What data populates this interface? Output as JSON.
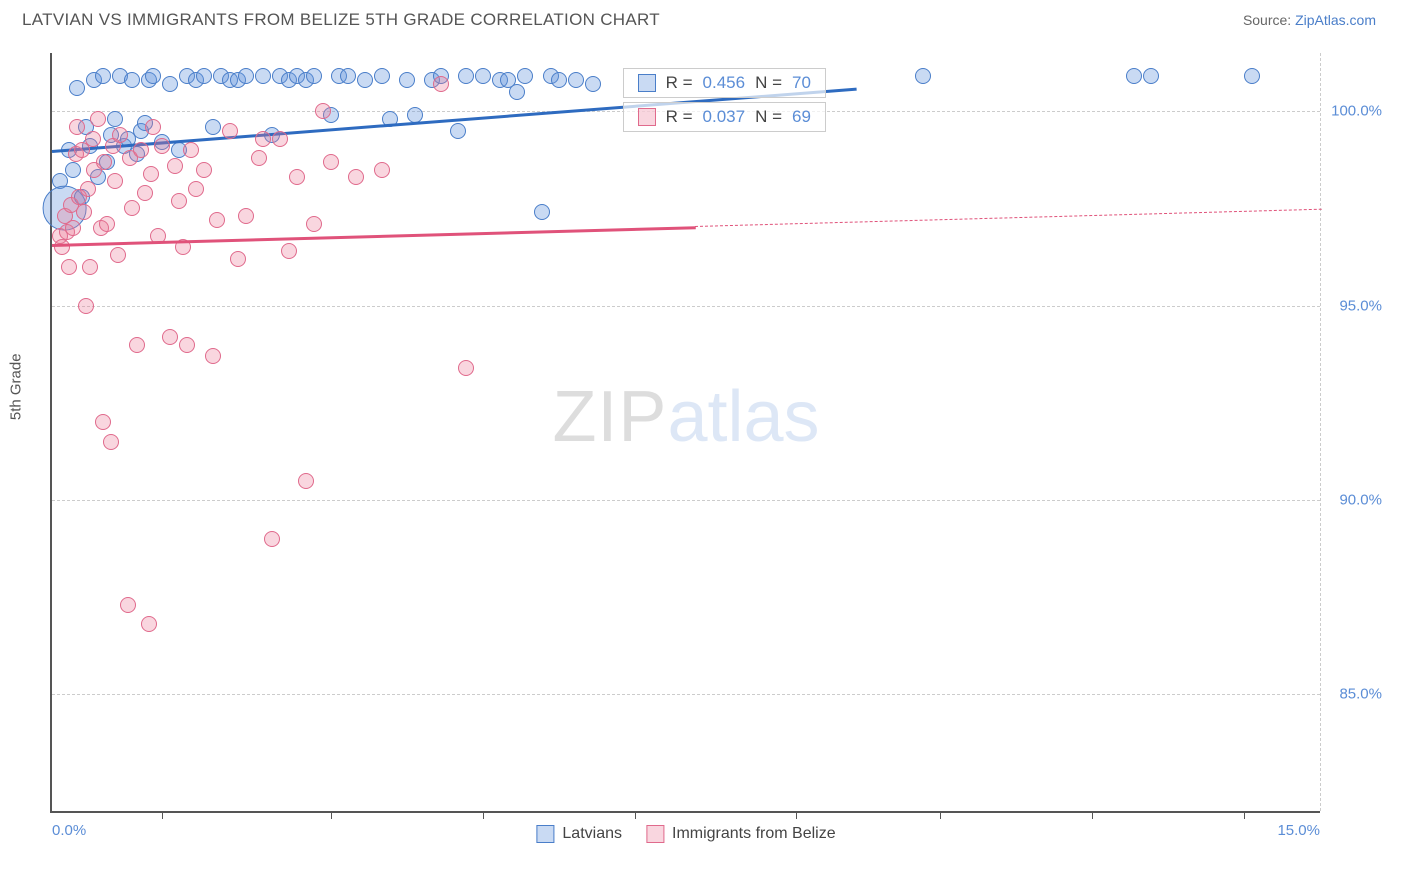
{
  "title": "LATVIAN VS IMMIGRANTS FROM BELIZE 5TH GRADE CORRELATION CHART",
  "source_label": "Source:",
  "source_name": "ZipAtlas.com",
  "y_axis_label": "5th Grade",
  "chart": {
    "type": "scatter",
    "xlim": [
      0,
      15
    ],
    "ylim": [
      82,
      101.5
    ],
    "x_ticks_major": [
      0,
      15
    ],
    "x_ticks_minor": [
      1.3,
      3.3,
      5.1,
      6.9,
      8.8,
      10.5,
      12.3,
      14.1
    ],
    "x_tick_labels": {
      "0": "0.0%",
      "15": "15.0%"
    },
    "y_ticks": [
      85,
      90,
      95,
      100
    ],
    "y_tick_labels": {
      "85": "85.0%",
      "90": "90.0%",
      "95": "95.0%",
      "100": "100.0%"
    },
    "grid_color": "#cccccc",
    "background_color": "#ffffff",
    "axis_color": "#555555",
    "tick_label_color": "#5b8dd6",
    "watermark": {
      "prefix": "ZIP",
      "suffix": "atlas"
    },
    "series": [
      {
        "name": "Latvians",
        "fill": "rgba(100,150,220,0.35)",
        "stroke": "#4a7ec9",
        "R": "0.456",
        "N": "70",
        "trend": {
          "x1": 0,
          "y1": 99.0,
          "x2": 9.5,
          "y2": 100.6,
          "color": "#2e6bc0",
          "dash_from_x": null
        },
        "points": [
          [
            0.1,
            98.2,
            10
          ],
          [
            0.15,
            97.5,
            28
          ],
          [
            0.2,
            99.0,
            10
          ],
          [
            0.25,
            98.5,
            10
          ],
          [
            0.3,
            100.6,
            10
          ],
          [
            0.35,
            97.8,
            10
          ],
          [
            0.4,
            99.6,
            10
          ],
          [
            0.45,
            99.1,
            10
          ],
          [
            0.5,
            100.8,
            10
          ],
          [
            0.55,
            98.3,
            10
          ],
          [
            0.6,
            100.9,
            10
          ],
          [
            0.65,
            98.7,
            10
          ],
          [
            0.7,
            99.4,
            10
          ],
          [
            0.75,
            99.8,
            10
          ],
          [
            0.8,
            100.9,
            10
          ],
          [
            0.85,
            99.1,
            10
          ],
          [
            0.9,
            99.3,
            10
          ],
          [
            0.95,
            100.8,
            10
          ],
          [
            1.0,
            98.9,
            10
          ],
          [
            1.05,
            99.5,
            10
          ],
          [
            1.1,
            99.7,
            10
          ],
          [
            1.15,
            100.8,
            10
          ],
          [
            1.2,
            100.9,
            10
          ],
          [
            1.3,
            99.2,
            10
          ],
          [
            1.4,
            100.7,
            10
          ],
          [
            1.5,
            99.0,
            10
          ],
          [
            1.6,
            100.9,
            10
          ],
          [
            1.7,
            100.8,
            10
          ],
          [
            1.8,
            100.9,
            10
          ],
          [
            1.9,
            99.6,
            10
          ],
          [
            2.0,
            100.9,
            10
          ],
          [
            2.1,
            100.8,
            10
          ],
          [
            2.2,
            100.8,
            10
          ],
          [
            2.3,
            100.9,
            10
          ],
          [
            2.5,
            100.9,
            10
          ],
          [
            2.6,
            99.4,
            10
          ],
          [
            2.7,
            100.9,
            10
          ],
          [
            2.8,
            100.8,
            10
          ],
          [
            2.9,
            100.9,
            10
          ],
          [
            3.0,
            100.8,
            10
          ],
          [
            3.1,
            100.9,
            10
          ],
          [
            3.3,
            99.9,
            10
          ],
          [
            3.4,
            100.9,
            10
          ],
          [
            3.5,
            100.9,
            10
          ],
          [
            3.7,
            100.8,
            10
          ],
          [
            3.9,
            100.9,
            10
          ],
          [
            4.0,
            99.8,
            10
          ],
          [
            4.2,
            100.8,
            10
          ],
          [
            4.3,
            99.9,
            10
          ],
          [
            4.5,
            100.8,
            10
          ],
          [
            4.6,
            100.9,
            10
          ],
          [
            4.8,
            99.5,
            10
          ],
          [
            4.9,
            100.9,
            10
          ],
          [
            5.1,
            100.9,
            10
          ],
          [
            5.3,
            100.8,
            10
          ],
          [
            5.4,
            100.8,
            10
          ],
          [
            5.5,
            100.5,
            10
          ],
          [
            5.6,
            100.9,
            10
          ],
          [
            5.8,
            97.4,
            10
          ],
          [
            5.9,
            100.9,
            10
          ],
          [
            6.0,
            100.8,
            10
          ],
          [
            6.2,
            100.8,
            10
          ],
          [
            6.4,
            100.7,
            10
          ],
          [
            10.3,
            100.9,
            10
          ],
          [
            12.8,
            100.9,
            10
          ],
          [
            13.0,
            100.9,
            10
          ],
          [
            14.2,
            100.9,
            10
          ]
        ]
      },
      {
        "name": "Immigants_from_Belize",
        "label": "Immigrants from Belize",
        "fill": "rgba(235,120,150,0.30)",
        "stroke": "#e06a8c",
        "R": "0.037",
        "N": "69",
        "trend": {
          "x1": 0,
          "y1": 96.6,
          "x2": 15,
          "y2": 97.5,
          "color": "#e0527a",
          "dash_from_x": 7.6
        },
        "points": [
          [
            0.1,
            96.8,
            10
          ],
          [
            0.12,
            96.5,
            10
          ],
          [
            0.15,
            97.3,
            10
          ],
          [
            0.18,
            96.9,
            10
          ],
          [
            0.2,
            96.0,
            10
          ],
          [
            0.22,
            97.6,
            10
          ],
          [
            0.25,
            97.0,
            10
          ],
          [
            0.28,
            98.9,
            10
          ],
          [
            0.3,
            99.6,
            10
          ],
          [
            0.32,
            97.8,
            10
          ],
          [
            0.35,
            99.0,
            10
          ],
          [
            0.38,
            97.4,
            10
          ],
          [
            0.4,
            95.0,
            10
          ],
          [
            0.42,
            98.0,
            10
          ],
          [
            0.45,
            96.0,
            10
          ],
          [
            0.48,
            99.3,
            10
          ],
          [
            0.5,
            98.5,
            10
          ],
          [
            0.55,
            99.8,
            10
          ],
          [
            0.58,
            97.0,
            10
          ],
          [
            0.6,
            92.0,
            10
          ],
          [
            0.62,
            98.7,
            10
          ],
          [
            0.65,
            97.1,
            10
          ],
          [
            0.7,
            91.5,
            10
          ],
          [
            0.72,
            99.1,
            10
          ],
          [
            0.75,
            98.2,
            10
          ],
          [
            0.78,
            96.3,
            10
          ],
          [
            0.8,
            99.4,
            10
          ],
          [
            0.9,
            87.3,
            10
          ],
          [
            0.92,
            98.8,
            10
          ],
          [
            0.95,
            97.5,
            10
          ],
          [
            1.0,
            94.0,
            10
          ],
          [
            1.05,
            99.0,
            10
          ],
          [
            1.1,
            97.9,
            10
          ],
          [
            1.15,
            86.8,
            10
          ],
          [
            1.17,
            98.4,
            10
          ],
          [
            1.2,
            99.6,
            10
          ],
          [
            1.25,
            96.8,
            10
          ],
          [
            1.3,
            99.1,
            10
          ],
          [
            1.4,
            94.2,
            10
          ],
          [
            1.45,
            98.6,
            10
          ],
          [
            1.5,
            97.7,
            10
          ],
          [
            1.55,
            96.5,
            10
          ],
          [
            1.6,
            94.0,
            10
          ],
          [
            1.65,
            99.0,
            10
          ],
          [
            1.7,
            98.0,
            10
          ],
          [
            1.8,
            98.5,
            10
          ],
          [
            1.9,
            93.7,
            10
          ],
          [
            1.95,
            97.2,
            10
          ],
          [
            2.1,
            99.5,
            10
          ],
          [
            2.2,
            96.2,
            10
          ],
          [
            2.3,
            97.3,
            10
          ],
          [
            2.45,
            98.8,
            10
          ],
          [
            2.5,
            99.3,
            10
          ],
          [
            2.6,
            89.0,
            10
          ],
          [
            2.7,
            99.3,
            10
          ],
          [
            2.8,
            96.4,
            10
          ],
          [
            2.9,
            98.3,
            10
          ],
          [
            3.0,
            90.5,
            10
          ],
          [
            3.1,
            97.1,
            10
          ],
          [
            3.2,
            100.0,
            10
          ],
          [
            3.3,
            98.7,
            10
          ],
          [
            3.6,
            98.3,
            10
          ],
          [
            3.9,
            98.5,
            10
          ],
          [
            4.6,
            100.7,
            10
          ],
          [
            4.9,
            93.4,
            10
          ]
        ]
      }
    ],
    "legend_boxes": [
      {
        "series_index": 0,
        "top_pct": 2,
        "left_pct": 45
      },
      {
        "series_index": 1,
        "top_pct": 6.5,
        "left_pct": 45
      }
    ]
  },
  "bottom_legend": [
    {
      "label": "Latvians",
      "fill": "rgba(100,150,220,0.35)",
      "stroke": "#4a7ec9"
    },
    {
      "label": "Immigrants from Belize",
      "fill": "rgba(235,120,150,0.30)",
      "stroke": "#e06a8c"
    }
  ]
}
